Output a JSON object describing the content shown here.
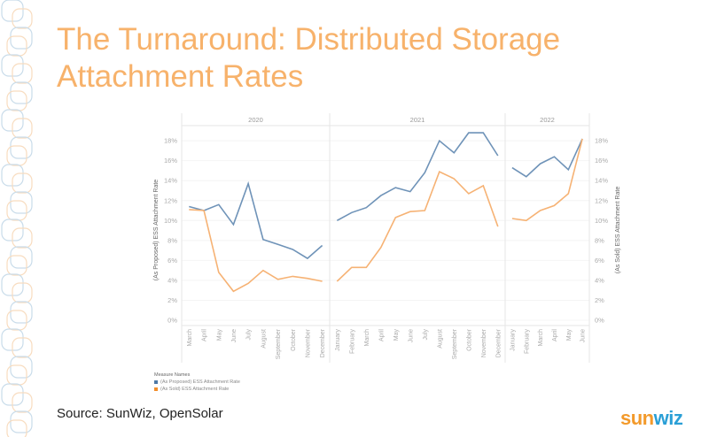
{
  "slide": {
    "title": "The Turnaround: Distributed Storage Attachment Rates",
    "source": "Source: SunWiz, OpenSolar",
    "logo": "sunwiz"
  },
  "colors": {
    "proposed": "#6f93b8",
    "sold": "#f6b274",
    "title": "#f7b26b"
  },
  "chart_data": {
    "type": "line",
    "panels": [
      {
        "year": "2020",
        "categories": [
          "March",
          "April",
          "May",
          "June",
          "July",
          "August",
          "September",
          "October",
          "November",
          "December"
        ]
      },
      {
        "year": "2021",
        "categories": [
          "January",
          "February",
          "March",
          "April",
          "May",
          "June",
          "July",
          "August",
          "September",
          "October",
          "November",
          "December"
        ]
      },
      {
        "year": "2022",
        "categories": [
          "January",
          "February",
          "March",
          "April",
          "May",
          "June"
        ]
      }
    ],
    "series": [
      {
        "name": "(As Proposed) ESS Attachment Rate",
        "values": [
          [
            11.4,
            11.0,
            11.6,
            9.6,
            13.7,
            8.1,
            7.6,
            7.1,
            6.2,
            7.5
          ],
          [
            10.0,
            10.8,
            11.3,
            12.5,
            13.3,
            12.9,
            14.8,
            18.0,
            16.8,
            18.8,
            18.8,
            16.5
          ],
          [
            15.3,
            14.4,
            15.7,
            16.4,
            15.1,
            18.2
          ]
        ]
      },
      {
        "name": "(As Sold) ESS Attachment Rate",
        "values": [
          [
            11.1,
            11.0,
            4.8,
            2.9,
            3.7,
            5.0,
            4.1,
            4.4,
            4.2,
            3.9
          ],
          [
            3.9,
            5.3,
            5.3,
            7.3,
            10.3,
            10.9,
            11.0,
            14.9,
            14.2,
            12.7,
            13.5,
            9.4
          ],
          [
            10.2,
            10.0,
            11.0,
            11.5,
            12.7,
            18.2
          ]
        ]
      }
    ],
    "ylabel_left": "(As Proposed) ESS Attachment Rate",
    "ylabel_right": "(As Sold) ESS Attachment Rate",
    "yticks": [
      "0%",
      "2%",
      "4%",
      "6%",
      "8%",
      "10%",
      "12%",
      "14%",
      "16%",
      "18%"
    ],
    "ylim": [
      0,
      19
    ],
    "legend": {
      "title": "Measure Names",
      "position": "bottom-left"
    },
    "grid": true
  }
}
